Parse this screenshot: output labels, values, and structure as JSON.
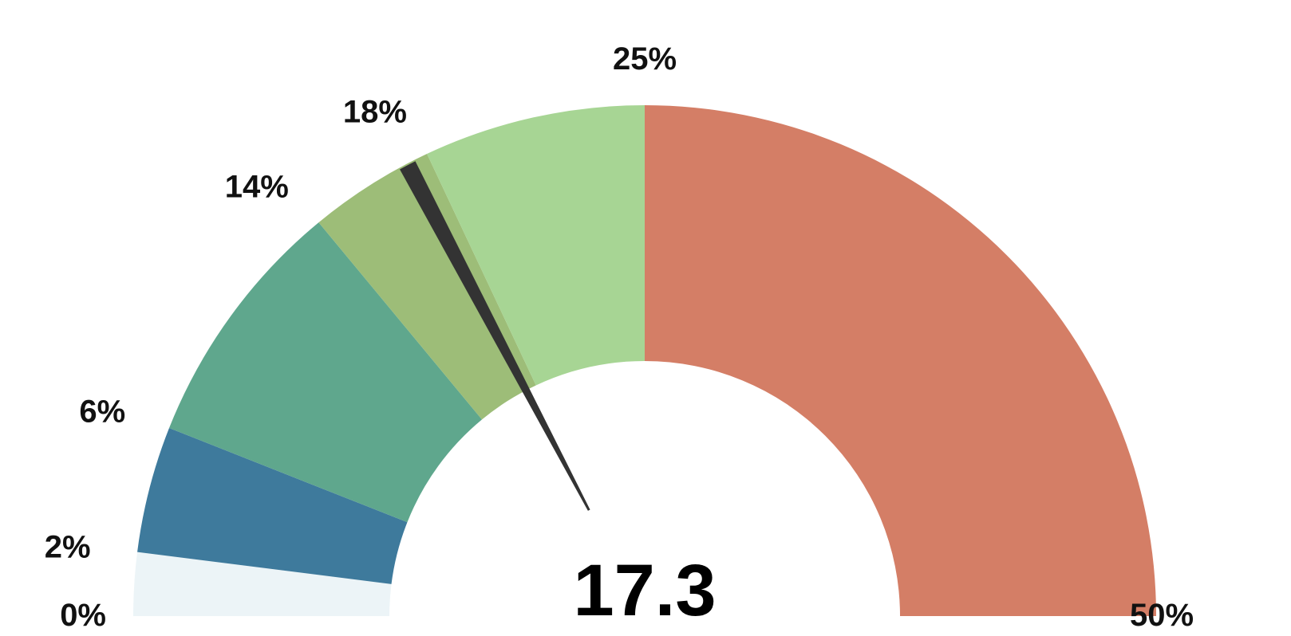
{
  "chart_data": {
    "type": "gauge",
    "title": "",
    "min": 0,
    "max": 50,
    "value": 17.3,
    "value_label": "17.3",
    "bands": [
      {
        "from": 0,
        "to": 2,
        "color": "#ecf4f7"
      },
      {
        "from": 2,
        "to": 6,
        "color": "#3e7a9c"
      },
      {
        "from": 6,
        "to": 14,
        "color": "#5fa78d"
      },
      {
        "from": 14,
        "to": 18,
        "color": "#9dbd78"
      },
      {
        "from": 18,
        "to": 25,
        "color": "#a7d594"
      },
      {
        "from": 25,
        "to": 50,
        "color": "#d47e66"
      }
    ],
    "ticks": [
      {
        "value": 0,
        "label": "0%"
      },
      {
        "value": 2,
        "label": "2%"
      },
      {
        "value": 6,
        "label": "6%"
      },
      {
        "value": 14,
        "label": "14%"
      },
      {
        "value": 18,
        "label": "18%"
      },
      {
        "value": 25,
        "label": "25%"
      },
      {
        "value": 50,
        "label": "50%"
      }
    ],
    "needle_color": "#333333"
  }
}
